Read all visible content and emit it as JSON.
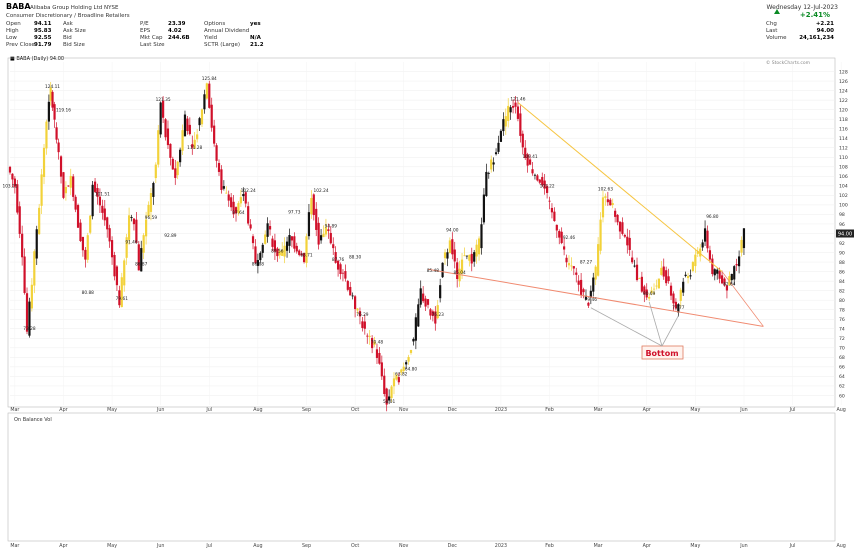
{
  "header": {
    "ticker": "BABA",
    "company": "Alibaba Group Holding Ltd  NYSE",
    "sector": "Consumer Discretionary / Broadline Retailers",
    "date": "Wednesday 12-Jul-2023",
    "pct_change": "+2.41%",
    "legend_line": "■ BABA (Daily) 94.00",
    "stats_col1": [
      {
        "label": "Open",
        "value": "94.11"
      },
      {
        "label": "High",
        "value": "95.83"
      },
      {
        "label": "Low",
        "value": "92.55"
      },
      {
        "label": "Prev Close",
        "value": "91.79"
      }
    ],
    "stats_col2": [
      {
        "label": "Ask",
        "value": ""
      },
      {
        "label": "Ask Size",
        "value": ""
      },
      {
        "label": "Bid",
        "value": ""
      },
      {
        "label": "Bid Size",
        "value": ""
      }
    ],
    "stats_col3": [
      {
        "label": "P/E",
        "value": "23.39"
      },
      {
        "label": "EPS",
        "value": "4.02"
      },
      {
        "label": "Mkt Cap",
        "value": "244.6B"
      },
      {
        "label": "Last Size",
        "value": ""
      }
    ],
    "stats_col4": [
      {
        "label": "Options",
        "value": "yes"
      },
      {
        "label": "Annual Dividend",
        "value": ""
      },
      {
        "label": "Yield",
        "value": "N/A"
      },
      {
        "label": "SCTR (Large)",
        "value": "21.2"
      }
    ],
    "stats_right": [
      {
        "label": "Chg",
        "value": "+2.21"
      },
      {
        "label": "Last",
        "value": "94.00"
      },
      {
        "label": "Volume",
        "value": "24,161,234"
      }
    ],
    "copyright": "© StockCharts.com"
  },
  "indicator": {
    "label": "On Balance Vol"
  },
  "annotation": {
    "bottom_label": "Bottom"
  },
  "colors": {
    "up": "#f2d23a",
    "down": "#d0102a",
    "black": "#111111",
    "trend_upper": "#f6c542",
    "trend_lower": "#f08a70",
    "last_badge": "#222222"
  },
  "chart_data": {
    "type": "line",
    "title": "BABA (Daily) 94.00",
    "ylim": [
      58,
      130
    ],
    "y_ticks": [
      128,
      126,
      124,
      122,
      120,
      118,
      116,
      114,
      112,
      110,
      108,
      106,
      104,
      102,
      100,
      98,
      96,
      94,
      92,
      90,
      88,
      86,
      84,
      82,
      80,
      78,
      76,
      74,
      72,
      70,
      68,
      66,
      64,
      62,
      60
    ],
    "x_ticks": [
      "Mar",
      "Apr",
      "May",
      "Jun",
      "Jul",
      "Aug",
      "Sep",
      "Oct",
      "Nov",
      "Dec",
      "2023",
      "Feb",
      "Mar",
      "Apr",
      "May",
      "Jun",
      "Jul",
      "Aug"
    ],
    "price_path": [
      [
        0,
        108
      ],
      [
        0.3,
        104
      ],
      [
        0.6,
        90
      ],
      [
        0.8,
        73.28
      ],
      [
        1.0,
        84
      ],
      [
        1.3,
        100
      ],
      [
        1.6,
        118
      ],
      [
        1.75,
        124.11
      ],
      [
        2.0,
        114
      ],
      [
        2.3,
        102
      ],
      [
        2.6,
        106
      ],
      [
        2.9,
        96
      ],
      [
        3.2,
        88
      ],
      [
        3.5,
        104
      ],
      [
        3.8,
        100
      ],
      [
        4.1,
        95
      ],
      [
        4.4,
        86
      ],
      [
        4.6,
        79.61
      ],
      [
        4.8,
        88
      ],
      [
        5.0,
        98
      ],
      [
        5.2,
        97
      ],
      [
        5.4,
        86.87
      ],
      [
        5.6,
        94
      ],
      [
        5.9,
        102
      ],
      [
        6.1,
        108
      ],
      [
        6.3,
        121.35
      ],
      [
        6.6,
        112
      ],
      [
        6.9,
        106
      ],
      [
        7.1,
        112
      ],
      [
        7.3,
        119
      ],
      [
        7.6,
        111.28
      ],
      [
        7.9,
        118
      ],
      [
        8.2,
        125.84
      ],
      [
        8.5,
        112
      ],
      [
        8.8,
        104
      ],
      [
        9.1,
        102
      ],
      [
        9.4,
        97.64
      ],
      [
        9.7,
        103
      ],
      [
        10.0,
        94
      ],
      [
        10.2,
        88
      ],
      [
        10.4,
        91
      ],
      [
        10.7,
        96
      ],
      [
        11.0,
        90
      ],
      [
        11.3,
        89.56
      ],
      [
        11.6,
        93
      ],
      [
        11.9,
        91
      ],
      [
        12.2,
        88.71
      ],
      [
        12.5,
        102.24
      ],
      [
        12.8,
        92
      ],
      [
        13.2,
        95
      ],
      [
        13.5,
        87.76
      ],
      [
        13.8,
        86
      ],
      [
        14.2,
        80
      ],
      [
        14.5,
        76.29
      ],
      [
        14.8,
        72
      ],
      [
        15.1,
        70.48
      ],
      [
        15.4,
        64
      ],
      [
        15.6,
        58.01
      ],
      [
        15.8,
        62
      ],
      [
        16.1,
        63.82
      ],
      [
        16.4,
        67
      ],
      [
        16.7,
        72
      ],
      [
        17.0,
        82
      ],
      [
        17.3,
        78
      ],
      [
        17.6,
        76
      ],
      [
        17.9,
        88
      ],
      [
        18.2,
        92
      ],
      [
        18.5,
        85.04
      ],
      [
        18.8,
        90
      ],
      [
        19.1,
        88
      ],
      [
        19.4,
        92
      ],
      [
        19.7,
        106
      ],
      [
        20.0,
        110
      ],
      [
        20.3,
        116
      ],
      [
        20.6,
        120
      ],
      [
        20.9,
        121.46
      ],
      [
        21.2,
        112
      ],
      [
        21.5,
        108
      ],
      [
        21.8,
        106
      ],
      [
        22.1,
        103.22
      ],
      [
        22.4,
        98
      ],
      [
        22.7,
        94
      ],
      [
        23.0,
        88
      ],
      [
        23.3,
        86
      ],
      [
        23.6,
        82
      ],
      [
        23.9,
        79.46
      ],
      [
        24.2,
        86
      ],
      [
        24.5,
        102
      ],
      [
        24.8,
        101
      ],
      [
        25.1,
        96
      ],
      [
        25.4,
        94
      ],
      [
        25.7,
        88
      ],
      [
        26.0,
        84
      ],
      [
        26.3,
        80.69
      ],
      [
        26.6,
        82
      ],
      [
        26.9,
        86
      ],
      [
        27.2,
        84
      ],
      [
        27.5,
        77.77
      ],
      [
        27.8,
        84
      ],
      [
        28.1,
        86
      ],
      [
        28.4,
        90
      ],
      [
        28.7,
        94
      ],
      [
        29.0,
        86
      ],
      [
        29.3,
        85
      ],
      [
        29.6,
        82.64
      ],
      [
        30.0,
        88
      ],
      [
        30.3,
        94
      ]
    ],
    "price_labels": [
      {
        "t": 0.0,
        "v": 103.25,
        "text": "103.25"
      },
      {
        "t": 0.8,
        "v": 73.28,
        "text": "73.28"
      },
      {
        "t": 1.75,
        "v": 124.11,
        "text": "124.11"
      },
      {
        "t": 2.2,
        "v": 119.16,
        "text": "119.16"
      },
      {
        "t": 3.2,
        "v": 80.88,
        "text": "80.88"
      },
      {
        "t": 3.8,
        "v": 101.51,
        "text": "101.51"
      },
      {
        "t": 4.6,
        "v": 79.61,
        "text": "79.61"
      },
      {
        "t": 5.0,
        "v": 91.46,
        "text": "91.46"
      },
      {
        "t": 5.4,
        "v": 86.87,
        "text": "86.87"
      },
      {
        "t": 5.8,
        "v": 96.59,
        "text": "96.59"
      },
      {
        "t": 6.3,
        "v": 121.35,
        "text": "121.35"
      },
      {
        "t": 6.6,
        "v": 92.89,
        "text": "92.89"
      },
      {
        "t": 7.6,
        "v": 111.28,
        "text": "111.28"
      },
      {
        "t": 8.2,
        "v": 125.84,
        "text": "125.84"
      },
      {
        "t": 9.4,
        "v": 97.64,
        "text": "97.64"
      },
      {
        "t": 9.8,
        "v": 102.24,
        "text": "102.24"
      },
      {
        "t": 10.2,
        "v": 86.88,
        "text": "86.88"
      },
      {
        "t": 11.0,
        "v": 89.56,
        "text": "89.56"
      },
      {
        "t": 12.2,
        "v": 88.71,
        "text": "88.71"
      },
      {
        "t": 11.7,
        "v": 97.73,
        "text": "97.73"
      },
      {
        "t": 12.8,
        "v": 102.24,
        "text": "102.24"
      },
      {
        "t": 13.5,
        "v": 87.76,
        "text": "87.76"
      },
      {
        "t": 13.2,
        "v": 94.89,
        "text": "94.89"
      },
      {
        "t": 14.5,
        "v": 76.29,
        "text": "76.29"
      },
      {
        "t": 14.2,
        "v": 88.3,
        "text": "88.30"
      },
      {
        "t": 15.1,
        "v": 70.48,
        "text": "70.48"
      },
      {
        "t": 15.6,
        "v": 58.01,
        "text": "58.01"
      },
      {
        "t": 16.1,
        "v": 63.82,
        "text": "63.82"
      },
      {
        "t": 16.5,
        "v": 64.8,
        "text": "64.80"
      },
      {
        "t": 17.4,
        "v": 85.48,
        "text": "85.48"
      },
      {
        "t": 17.6,
        "v": 76.23,
        "text": "76.23"
      },
      {
        "t": 18.5,
        "v": 85.04,
        "text": "85.04"
      },
      {
        "t": 18.2,
        "v": 94.0,
        "text": "94.00"
      },
      {
        "t": 20.9,
        "v": 121.46,
        "text": "121.46"
      },
      {
        "t": 21.4,
        "v": 109.41,
        "text": "109.41"
      },
      {
        "t": 22.1,
        "v": 103.22,
        "text": "103.22"
      },
      {
        "t": 23.0,
        "v": 92.46,
        "text": "92.46"
      },
      {
        "t": 23.7,
        "v": 87.27,
        "text": "87.27"
      },
      {
        "t": 23.9,
        "v": 79.46,
        "text": "79.46"
      },
      {
        "t": 24.5,
        "v": 102.63,
        "text": "102.63"
      },
      {
        "t": 26.3,
        "v": 80.69,
        "text": "80.69"
      },
      {
        "t": 27.5,
        "v": 77.77,
        "text": "77.77"
      },
      {
        "t": 28.9,
        "v": 96.8,
        "text": "96.80"
      },
      {
        "t": 29.6,
        "v": 82.64,
        "text": "82.64"
      }
    ],
    "trendlines": [
      {
        "name": "upper",
        "from": [
          20.9,
          121.5
        ],
        "to": [
          29.3,
          86.0
        ]
      },
      {
        "name": "lower",
        "from": [
          17.2,
          86.5
        ],
        "to": [
          31.0,
          74.5
        ]
      }
    ],
    "bottom_markers": [
      [
        23.9,
        79.46
      ],
      [
        26.3,
        80.69
      ],
      [
        27.5,
        77.77
      ]
    ],
    "last_value": 94.0,
    "grid": true
  }
}
